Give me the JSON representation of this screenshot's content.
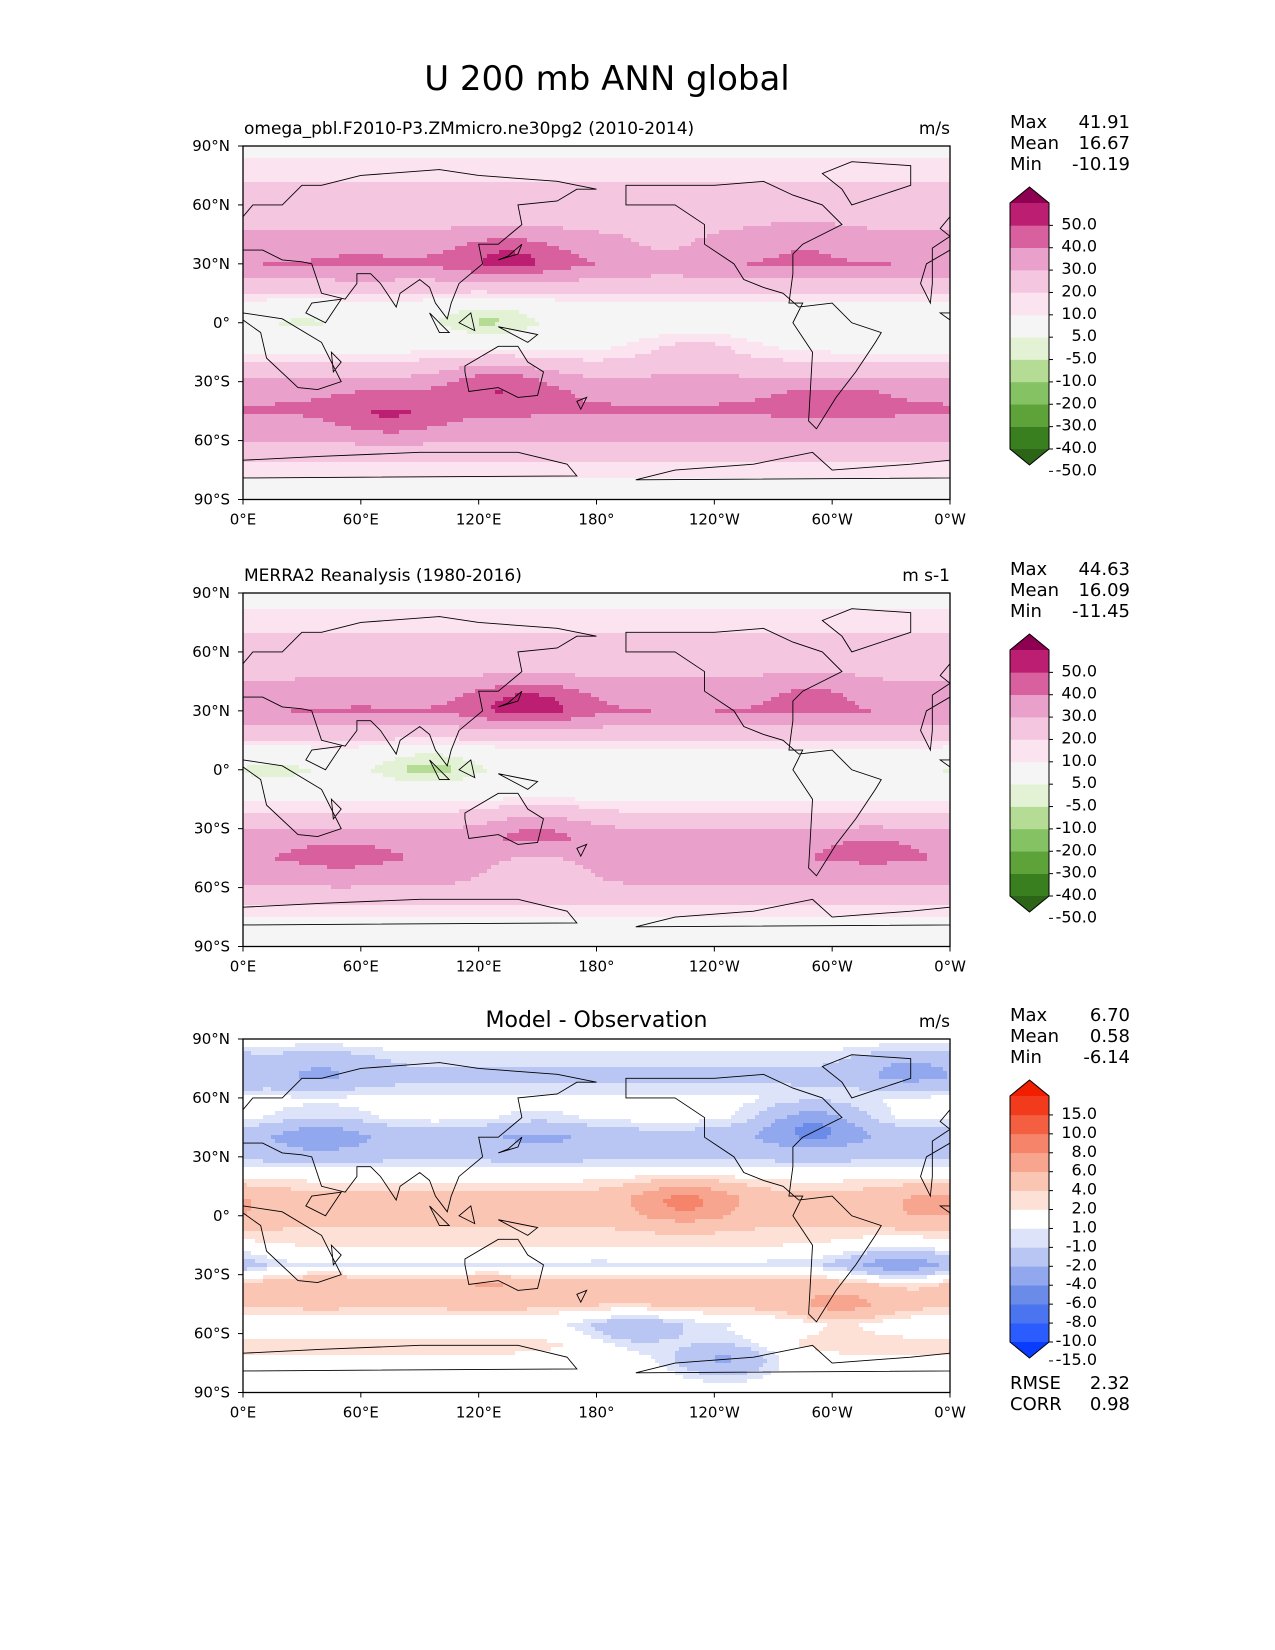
{
  "title": "U 200 mb ANN global",
  "x_tick_labels": [
    "0°E",
    "60°E",
    "120°E",
    "180°",
    "120°W",
    "60°W",
    "0°W"
  ],
  "y_tick_labels": [
    "90°N",
    "60°N",
    "30°N",
    "0°",
    "30°S",
    "60°S",
    "90°S"
  ],
  "stat_labels": {
    "max": "Max",
    "mean": "Mean",
    "min": "Min",
    "rmse": "RMSE",
    "corr": "CORR"
  },
  "colors": {
    "abs_levels": [
      "#2d6518",
      "#3a7f1f",
      "#5ea339",
      "#85c263",
      "#b4dc95",
      "#e3f2d4",
      "#f5f5f5",
      "#fbe3ef",
      "#f4c6e0",
      "#e9a1cc",
      "#d9609f",
      "#bc1f72",
      "#8e0152"
    ],
    "diff_levels": [
      "#0a3cff",
      "#2a5cff",
      "#4a74f0",
      "#6a8ce8",
      "#91a8ef",
      "#b9c6f4",
      "#dde3f9",
      "#ffffff",
      "#fde0d6",
      "#fbc5b4",
      "#f8a590",
      "#f6846a",
      "#f45f42",
      "#f23a1c",
      "#f11f00"
    ],
    "land_outline": "#000000"
  },
  "chart_data": [
    {
      "type": "heatmap",
      "title": "omega_pbl.F2010-P3.ZMmicro.ne30pg2 (2010-2014)",
      "units": "m/s",
      "xlabel": "",
      "ylabel": "",
      "xlim": [
        0,
        360
      ],
      "ylim": [
        -90,
        90
      ],
      "stats": {
        "max": "41.91",
        "mean": "16.67",
        "min": "-10.19"
      },
      "colorbar": {
        "tick_labels": [
          "50.0",
          "40.0",
          "30.0",
          "20.0",
          "10.0",
          "5.0",
          "-5.0",
          "-10.0",
          "-20.0",
          "-30.0",
          "-40.0",
          "-50.0"
        ],
        "boundaries": [
          -50,
          -40,
          -30,
          -20,
          -10,
          -5,
          5,
          10,
          20,
          30,
          40,
          50
        ],
        "extend": "both"
      },
      "field": {
        "zonal_mean": [
          [
            -90,
            2
          ],
          [
            -75,
            6
          ],
          [
            -60,
            20
          ],
          [
            -45,
            31
          ],
          [
            -35,
            28
          ],
          [
            -25,
            16
          ],
          [
            -15,
            5
          ],
          [
            0,
            -1
          ],
          [
            10,
            4
          ],
          [
            20,
            17
          ],
          [
            30,
            30
          ],
          [
            40,
            24
          ],
          [
            50,
            18
          ],
          [
            60,
            14
          ],
          [
            75,
            9
          ],
          [
            90,
            2
          ]
        ],
        "features": [
          {
            "lon": 135,
            "lat": 34,
            "value": 42
          },
          {
            "lon": 60,
            "lat": 33,
            "value": 31
          },
          {
            "lon": 215,
            "lat": 35,
            "value": 21
          },
          {
            "lon": 285,
            "lat": 42,
            "value": 28
          },
          {
            "lon": 340,
            "lat": 40,
            "value": 24
          },
          {
            "lon": 125,
            "lat": 2,
            "value": -10
          },
          {
            "lon": 30,
            "lat": 0,
            "value": -6
          },
          {
            "lon": 75,
            "lat": -48,
            "value": 40
          },
          {
            "lon": 130,
            "lat": -30,
            "value": 37
          },
          {
            "lon": 300,
            "lat": -40,
            "value": 34
          },
          {
            "lon": 230,
            "lat": -15,
            "value": 14
          }
        ]
      }
    },
    {
      "type": "heatmap",
      "title": "MERRA2 Reanalysis (1980-2016)",
      "units": "m s-1",
      "xlabel": "",
      "ylabel": "",
      "xlim": [
        0,
        360
      ],
      "ylim": [
        -90,
        90
      ],
      "stats": {
        "max": "44.63",
        "mean": "16.09",
        "min": "-11.45"
      },
      "colorbar": {
        "tick_labels": [
          "50.0",
          "40.0",
          "30.0",
          "20.0",
          "10.0",
          "5.0",
          "-5.0",
          "-10.0",
          "-20.0",
          "-30.0",
          "-40.0",
          "-50.0"
        ],
        "boundaries": [
          -50,
          -40,
          -30,
          -20,
          -10,
          -5,
          5,
          10,
          20,
          30,
          40,
          50
        ],
        "extend": "both"
      },
      "field": {
        "zonal_mean": [
          [
            -90,
            2
          ],
          [
            -75,
            5
          ],
          [
            -60,
            19
          ],
          [
            -45,
            29
          ],
          [
            -35,
            26
          ],
          [
            -25,
            13
          ],
          [
            -15,
            4
          ],
          [
            0,
            -2
          ],
          [
            10,
            4
          ],
          [
            20,
            17
          ],
          [
            30,
            30
          ],
          [
            40,
            25
          ],
          [
            50,
            17
          ],
          [
            60,
            13
          ],
          [
            75,
            8
          ],
          [
            90,
            2
          ]
        ],
        "features": [
          {
            "lon": 145,
            "lat": 34,
            "value": 45
          },
          {
            "lon": 60,
            "lat": 32,
            "value": 30
          },
          {
            "lon": 290,
            "lat": 40,
            "value": 31
          },
          {
            "lon": 340,
            "lat": 38,
            "value": 24
          },
          {
            "lon": 95,
            "lat": 2,
            "value": -11
          },
          {
            "lon": 15,
            "lat": 0,
            "value": -7
          },
          {
            "lon": 50,
            "lat": -45,
            "value": 34
          },
          {
            "lon": 150,
            "lat": -30,
            "value": 31
          },
          {
            "lon": 320,
            "lat": -40,
            "value": 32
          },
          {
            "lon": 150,
            "lat": -48,
            "value": 14
          }
        ]
      }
    },
    {
      "type": "heatmap",
      "title": "Model - Observation",
      "units": "m/s",
      "xlabel": "",
      "ylabel": "",
      "xlim": [
        0,
        360
      ],
      "ylim": [
        -90,
        90
      ],
      "stats": {
        "max": "6.70",
        "mean": "0.58",
        "min": "-6.14",
        "rmse": "2.32",
        "corr": "0.98"
      },
      "colorbar": {
        "tick_labels": [
          "15.0",
          "10.0",
          "8.0",
          "6.0",
          "4.0",
          "2.0",
          "1.0",
          "-1.0",
          "-2.0",
          "-4.0",
          "-6.0",
          "-8.0",
          "-10.0",
          "-15.0"
        ],
        "boundaries": [
          -15,
          -10,
          -8,
          -6,
          -4,
          -2,
          -1,
          1,
          2,
          4,
          6,
          8,
          10,
          15
        ],
        "extend": "both"
      },
      "field": {
        "zonal_mean": [
          [
            -90,
            0
          ],
          [
            -75,
            0.5
          ],
          [
            -65,
            1.5
          ],
          [
            -55,
            -0.5
          ],
          [
            -45,
            2.5
          ],
          [
            -35,
            3
          ],
          [
            -25,
            -1.5
          ],
          [
            -15,
            1
          ],
          [
            0,
            2.5
          ],
          [
            10,
            2.5
          ],
          [
            20,
            0.5
          ],
          [
            30,
            -2.5
          ],
          [
            40,
            -3
          ],
          [
            50,
            -0.5
          ],
          [
            60,
            -0.5
          ],
          [
            70,
            -2.5
          ],
          [
            80,
            -1.5
          ],
          [
            90,
            0
          ]
        ],
        "features": [
          {
            "lon": 225,
            "lat": 7,
            "value": 6.5
          },
          {
            "lon": 350,
            "lat": 5,
            "value": 4.5
          },
          {
            "lon": 40,
            "lat": -35,
            "value": 4
          },
          {
            "lon": 125,
            "lat": -37,
            "value": 4
          },
          {
            "lon": 230,
            "lat": -38,
            "value": 3.5
          },
          {
            "lon": 305,
            "lat": -48,
            "value": 4
          },
          {
            "lon": 40,
            "lat": 42,
            "value": -5
          },
          {
            "lon": 150,
            "lat": 42,
            "value": -4
          },
          {
            "lon": 290,
            "lat": 47,
            "value": -6
          },
          {
            "lon": 335,
            "lat": -25,
            "value": -5.5
          },
          {
            "lon": 245,
            "lat": -72,
            "value": -4
          },
          {
            "lon": 200,
            "lat": -60,
            "value": -3
          },
          {
            "lon": 40,
            "lat": 75,
            "value": -4
          },
          {
            "lon": 340,
            "lat": 75,
            "value": -4.5
          }
        ]
      }
    }
  ]
}
